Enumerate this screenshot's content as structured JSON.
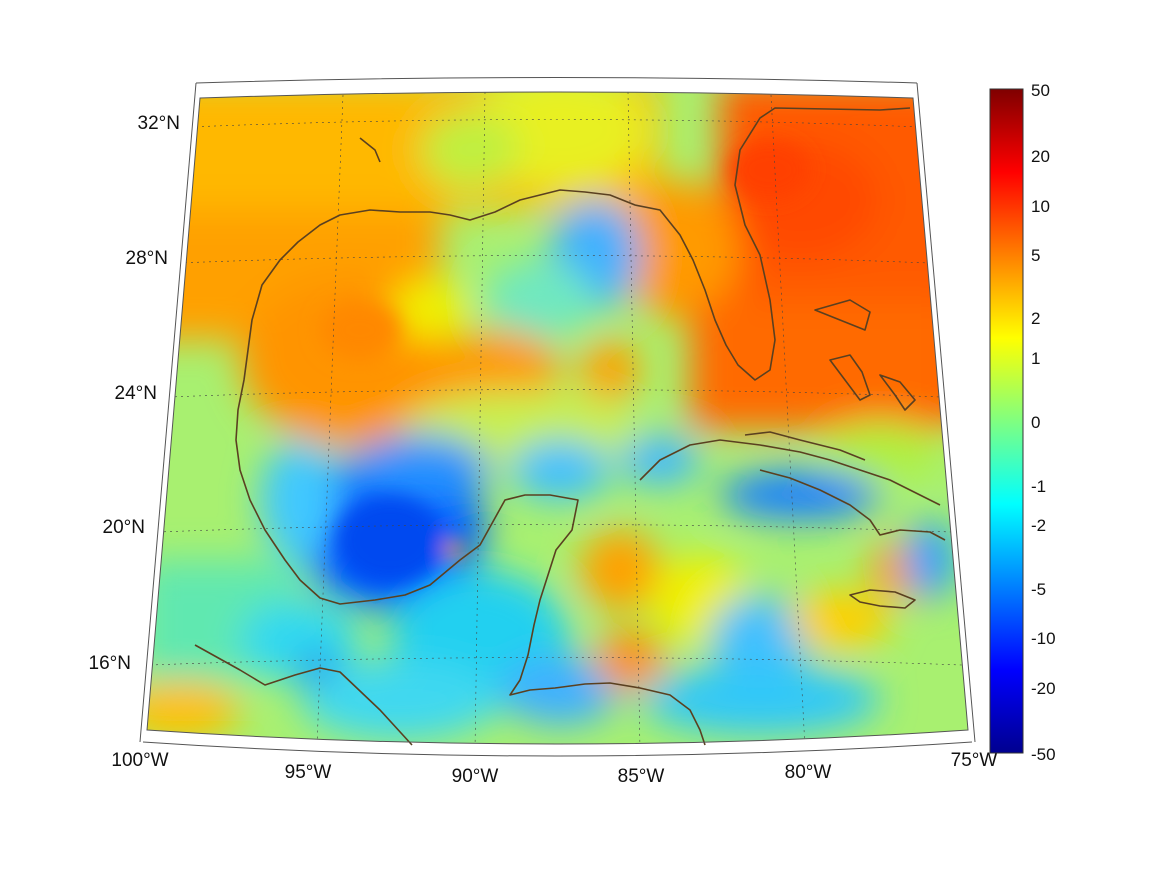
{
  "map": {
    "projection": "conic",
    "lon_range": [
      -100,
      -75
    ],
    "lat_range": [
      14,
      33
    ],
    "gridlines": true,
    "coastlines": true,
    "coastline_color": "#5a4020",
    "lon_ticks": [
      "100°W",
      "95°W",
      "90°W",
      "85°W",
      "80°W",
      "75°W"
    ],
    "lat_ticks": [
      "32°N",
      "28°N",
      "24°N",
      "20°N",
      "16°N"
    ]
  },
  "colorbar": {
    "colormap": "jet",
    "labels": [
      "50",
      "20",
      "10",
      "5",
      "2",
      "1",
      "0",
      "-1",
      "-2",
      "-5",
      "-10",
      "-20",
      "-50"
    ],
    "scale": "symmetric-log"
  },
  "field_colors": {
    "dark_red": "#7f0000",
    "red": "#ff2000",
    "orange_red": "#ff5a00",
    "orange": "#ffa000",
    "yellow": "#f0f000",
    "light_green": "#a0f060",
    "cyan": "#20e0f0",
    "light_blue": "#40b0ff",
    "blue": "#0060ff",
    "dark_blue": "#00008f"
  }
}
